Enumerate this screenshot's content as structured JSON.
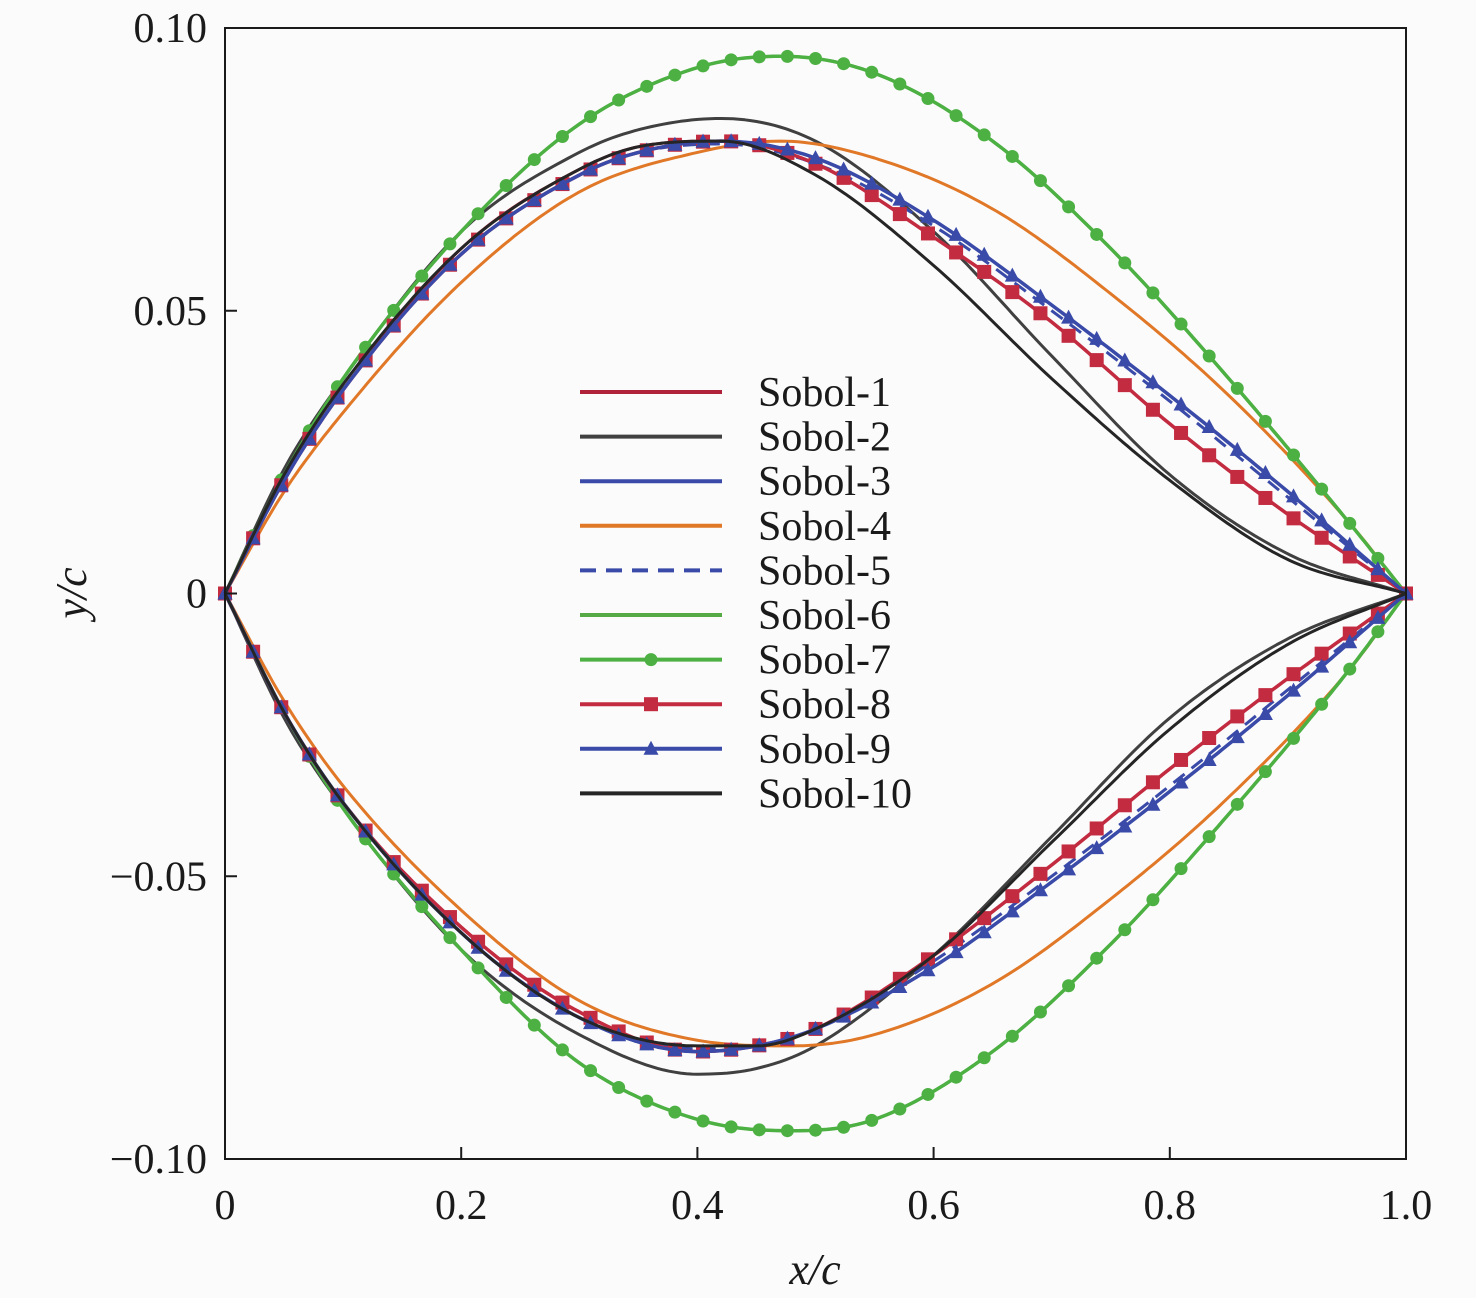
{
  "chart_data": {
    "type": "line",
    "title": "",
    "xlabel": "x/c",
    "ylabel": "y/c",
    "xlim": [
      0,
      1.0
    ],
    "ylim": [
      -0.1,
      0.1
    ],
    "x_ticks": [
      "0",
      "0.2",
      "0.4",
      "0.6",
      "0.8",
      "1.0"
    ],
    "x_tick_values": [
      0,
      0.2,
      0.4,
      0.6,
      0.8,
      1.0
    ],
    "y_ticks": [
      "0.10",
      "0.05",
      "0",
      "−0.05",
      "−0.10"
    ],
    "y_tick_values": [
      0.1,
      0.05,
      0,
      -0.05,
      -0.1
    ],
    "grid": false,
    "legend_position": "center",
    "series": [
      {
        "name": "Sobol-1",
        "color": "#b0213a",
        "dash": "solid",
        "marker": "none",
        "upper": [
          [
            0,
            0
          ],
          [
            0.05,
            0.02
          ],
          [
            0.1,
            0.036
          ],
          [
            0.2,
            0.061
          ],
          [
            0.3,
            0.075
          ],
          [
            0.35,
            0.079
          ],
          [
            0.42,
            0.08
          ],
          [
            0.5,
            0.076
          ],
          [
            0.6,
            0.063
          ],
          [
            0.7,
            0.048
          ],
          [
            0.8,
            0.03
          ],
          [
            0.9,
            0.014
          ],
          [
            1.0,
            0
          ]
        ],
        "lower": [
          [
            0,
            0
          ],
          [
            0.05,
            -0.021
          ],
          [
            0.1,
            -0.037
          ],
          [
            0.2,
            -0.059
          ],
          [
            0.3,
            -0.074
          ],
          [
            0.4,
            -0.081
          ],
          [
            0.45,
            -0.08
          ],
          [
            0.5,
            -0.077
          ],
          [
            0.6,
            -0.064
          ],
          [
            0.7,
            -0.048
          ],
          [
            0.8,
            -0.031
          ],
          [
            0.9,
            -0.015
          ],
          [
            1.0,
            0
          ]
        ]
      },
      {
        "name": "Sobol-2",
        "color": "#404040",
        "dash": "solid",
        "marker": "none",
        "upper": [
          [
            0,
            0
          ],
          [
            0.05,
            0.022
          ],
          [
            0.1,
            0.038
          ],
          [
            0.2,
            0.064
          ],
          [
            0.3,
            0.078
          ],
          [
            0.35,
            0.082
          ],
          [
            0.42,
            0.084
          ],
          [
            0.5,
            0.08
          ],
          [
            0.6,
            0.064
          ],
          [
            0.7,
            0.042
          ],
          [
            0.8,
            0.021
          ],
          [
            0.9,
            0.007
          ],
          [
            1.0,
            0
          ]
        ],
        "lower": [
          [
            0,
            0
          ],
          [
            0.05,
            -0.022
          ],
          [
            0.1,
            -0.038
          ],
          [
            0.2,
            -0.063
          ],
          [
            0.3,
            -0.078
          ],
          [
            0.4,
            -0.085
          ],
          [
            0.45,
            -0.084
          ],
          [
            0.5,
            -0.08
          ],
          [
            0.6,
            -0.064
          ],
          [
            0.7,
            -0.043
          ],
          [
            0.8,
            -0.022
          ],
          [
            0.9,
            -0.008
          ],
          [
            1.0,
            0
          ]
        ]
      },
      {
        "name": "Sobol-3",
        "color": "#3a4aa8",
        "dash": "solid",
        "marker": "none",
        "upper": [
          [
            0,
            0
          ],
          [
            0.05,
            0.02
          ],
          [
            0.1,
            0.036
          ],
          [
            0.2,
            0.06
          ],
          [
            0.3,
            0.074
          ],
          [
            0.35,
            0.078
          ],
          [
            0.42,
            0.08
          ],
          [
            0.5,
            0.077
          ],
          [
            0.6,
            0.066
          ],
          [
            0.7,
            0.051
          ],
          [
            0.8,
            0.035
          ],
          [
            0.9,
            0.018
          ],
          [
            1.0,
            0
          ]
        ],
        "lower": [
          [
            0,
            0
          ],
          [
            0.05,
            -0.021
          ],
          [
            0.1,
            -0.037
          ],
          [
            0.2,
            -0.06
          ],
          [
            0.3,
            -0.075
          ],
          [
            0.4,
            -0.081
          ],
          [
            0.45,
            -0.08
          ],
          [
            0.5,
            -0.077
          ],
          [
            0.6,
            -0.066
          ],
          [
            0.7,
            -0.051
          ],
          [
            0.8,
            -0.035
          ],
          [
            0.9,
            -0.018
          ],
          [
            1.0,
            0
          ]
        ]
      },
      {
        "name": "Sobol-4",
        "color": "#e07828",
        "dash": "solid",
        "marker": "none",
        "upper": [
          [
            0,
            0
          ],
          [
            0.05,
            0.018
          ],
          [
            0.1,
            0.032
          ],
          [
            0.2,
            0.055
          ],
          [
            0.3,
            0.071
          ],
          [
            0.4,
            0.078
          ],
          [
            0.47,
            0.08
          ],
          [
            0.55,
            0.077
          ],
          [
            0.65,
            0.068
          ],
          [
            0.75,
            0.053
          ],
          [
            0.85,
            0.035
          ],
          [
            0.95,
            0.013
          ],
          [
            1.0,
            0
          ]
        ],
        "lower": [
          [
            0,
            0
          ],
          [
            0.05,
            -0.019
          ],
          [
            0.1,
            -0.034
          ],
          [
            0.2,
            -0.056
          ],
          [
            0.3,
            -0.072
          ],
          [
            0.4,
            -0.079
          ],
          [
            0.48,
            -0.08
          ],
          [
            0.55,
            -0.078
          ],
          [
            0.65,
            -0.069
          ],
          [
            0.75,
            -0.054
          ],
          [
            0.85,
            -0.036
          ],
          [
            0.95,
            -0.014
          ],
          [
            1.0,
            0
          ]
        ]
      },
      {
        "name": "Sobol-5",
        "color": "#3a4aa8",
        "dash": "dashed",
        "marker": "none",
        "upper": [
          [
            0,
            0
          ],
          [
            0.05,
            0.02
          ],
          [
            0.1,
            0.036
          ],
          [
            0.2,
            0.06
          ],
          [
            0.3,
            0.074
          ],
          [
            0.35,
            0.078
          ],
          [
            0.42,
            0.0795
          ],
          [
            0.5,
            0.076
          ],
          [
            0.6,
            0.065
          ],
          [
            0.7,
            0.05
          ],
          [
            0.8,
            0.034
          ],
          [
            0.9,
            0.017
          ],
          [
            1.0,
            0
          ]
        ],
        "lower": [
          [
            0,
            0
          ],
          [
            0.05,
            -0.021
          ],
          [
            0.1,
            -0.037
          ],
          [
            0.2,
            -0.06
          ],
          [
            0.3,
            -0.075
          ],
          [
            0.4,
            -0.0805
          ],
          [
            0.45,
            -0.08
          ],
          [
            0.5,
            -0.077
          ],
          [
            0.6,
            -0.065
          ],
          [
            0.7,
            -0.05
          ],
          [
            0.8,
            -0.034
          ],
          [
            0.9,
            -0.017
          ],
          [
            1.0,
            0
          ]
        ]
      },
      {
        "name": "Sobol-6",
        "color": "#56aa46",
        "dash": "solid",
        "marker": "none",
        "upper": [
          [
            0,
            0
          ],
          [
            0.05,
            0.021
          ],
          [
            0.1,
            0.038
          ],
          [
            0.2,
            0.064
          ],
          [
            0.3,
            0.083
          ],
          [
            0.4,
            0.093
          ],
          [
            0.47,
            0.095
          ],
          [
            0.55,
            0.092
          ],
          [
            0.65,
            0.08
          ],
          [
            0.75,
            0.061
          ],
          [
            0.85,
            0.038
          ],
          [
            0.95,
            0.013
          ],
          [
            1.0,
            0
          ]
        ],
        "lower": [
          [
            0,
            0
          ],
          [
            0.05,
            -0.021
          ],
          [
            0.1,
            -0.038
          ],
          [
            0.2,
            -0.063
          ],
          [
            0.3,
            -0.083
          ],
          [
            0.4,
            -0.093
          ],
          [
            0.48,
            -0.095
          ],
          [
            0.55,
            -0.093
          ],
          [
            0.65,
            -0.081
          ],
          [
            0.75,
            -0.062
          ],
          [
            0.85,
            -0.039
          ],
          [
            0.95,
            -0.014
          ],
          [
            1.0,
            0
          ]
        ]
      },
      {
        "name": "Sobol-7",
        "color": "#4cb043",
        "dash": "solid",
        "marker": "circle",
        "upper": [
          [
            0,
            0
          ],
          [
            0.05,
            0.021
          ],
          [
            0.1,
            0.038
          ],
          [
            0.2,
            0.064
          ],
          [
            0.3,
            0.083
          ],
          [
            0.4,
            0.093
          ],
          [
            0.47,
            0.095
          ],
          [
            0.55,
            0.092
          ],
          [
            0.65,
            0.08
          ],
          [
            0.75,
            0.061
          ],
          [
            0.85,
            0.038
          ],
          [
            0.95,
            0.013
          ],
          [
            1.0,
            0
          ]
        ],
        "lower": [
          [
            0,
            0
          ],
          [
            0.05,
            -0.021
          ],
          [
            0.1,
            -0.038
          ],
          [
            0.2,
            -0.063
          ],
          [
            0.3,
            -0.083
          ],
          [
            0.4,
            -0.093
          ],
          [
            0.48,
            -0.095
          ],
          [
            0.55,
            -0.093
          ],
          [
            0.65,
            -0.081
          ],
          [
            0.75,
            -0.062
          ],
          [
            0.85,
            -0.039
          ],
          [
            0.95,
            -0.014
          ],
          [
            1.0,
            0
          ]
        ]
      },
      {
        "name": "Sobol-8",
        "color": "#c22b40",
        "dash": "solid",
        "marker": "square",
        "upper": [
          [
            0,
            0
          ],
          [
            0.05,
            0.02
          ],
          [
            0.1,
            0.036
          ],
          [
            0.2,
            0.06
          ],
          [
            0.3,
            0.074
          ],
          [
            0.35,
            0.078
          ],
          [
            0.42,
            0.08
          ],
          [
            0.5,
            0.076
          ],
          [
            0.6,
            0.063
          ],
          [
            0.7,
            0.048
          ],
          [
            0.8,
            0.03
          ],
          [
            0.9,
            0.014
          ],
          [
            1.0,
            0
          ]
        ],
        "lower": [
          [
            0,
            0
          ],
          [
            0.05,
            -0.021
          ],
          [
            0.1,
            -0.037
          ],
          [
            0.2,
            -0.059
          ],
          [
            0.3,
            -0.074
          ],
          [
            0.4,
            -0.081
          ],
          [
            0.45,
            -0.08
          ],
          [
            0.5,
            -0.077
          ],
          [
            0.6,
            -0.064
          ],
          [
            0.7,
            -0.048
          ],
          [
            0.8,
            -0.031
          ],
          [
            0.9,
            -0.015
          ],
          [
            1.0,
            0
          ]
        ]
      },
      {
        "name": "Sobol-9",
        "color": "#3a4aa8",
        "dash": "solid",
        "marker": "triangle",
        "upper": [
          [
            0,
            0
          ],
          [
            0.05,
            0.02
          ],
          [
            0.1,
            0.036
          ],
          [
            0.2,
            0.06
          ],
          [
            0.3,
            0.074
          ],
          [
            0.35,
            0.078
          ],
          [
            0.42,
            0.08
          ],
          [
            0.5,
            0.077
          ],
          [
            0.6,
            0.066
          ],
          [
            0.7,
            0.051
          ],
          [
            0.8,
            0.035
          ],
          [
            0.9,
            0.018
          ],
          [
            1.0,
            0
          ]
        ],
        "lower": [
          [
            0,
            0
          ],
          [
            0.05,
            -0.021
          ],
          [
            0.1,
            -0.037
          ],
          [
            0.2,
            -0.06
          ],
          [
            0.3,
            -0.075
          ],
          [
            0.4,
            -0.081
          ],
          [
            0.45,
            -0.08
          ],
          [
            0.5,
            -0.077
          ],
          [
            0.6,
            -0.066
          ],
          [
            0.7,
            -0.051
          ],
          [
            0.8,
            -0.035
          ],
          [
            0.9,
            -0.018
          ],
          [
            1.0,
            0
          ]
        ]
      },
      {
        "name": "Sobol-10",
        "color": "#252525",
        "dash": "solid",
        "marker": "none",
        "upper": [
          [
            0,
            0
          ],
          [
            0.05,
            0.021
          ],
          [
            0.1,
            0.037
          ],
          [
            0.2,
            0.061
          ],
          [
            0.3,
            0.075
          ],
          [
            0.35,
            0.079
          ],
          [
            0.42,
            0.08
          ],
          [
            0.5,
            0.074
          ],
          [
            0.6,
            0.058
          ],
          [
            0.7,
            0.038
          ],
          [
            0.8,
            0.02
          ],
          [
            0.9,
            0.006
          ],
          [
            1.0,
            0
          ]
        ],
        "lower": [
          [
            0,
            0
          ],
          [
            0.05,
            -0.021
          ],
          [
            0.1,
            -0.037
          ],
          [
            0.2,
            -0.06
          ],
          [
            0.3,
            -0.075
          ],
          [
            0.4,
            -0.08
          ],
          [
            0.45,
            -0.08
          ],
          [
            0.5,
            -0.077
          ],
          [
            0.6,
            -0.064
          ],
          [
            0.7,
            -0.044
          ],
          [
            0.8,
            -0.024
          ],
          [
            0.9,
            -0.009
          ],
          [
            1.0,
            0
          ]
        ]
      }
    ]
  }
}
